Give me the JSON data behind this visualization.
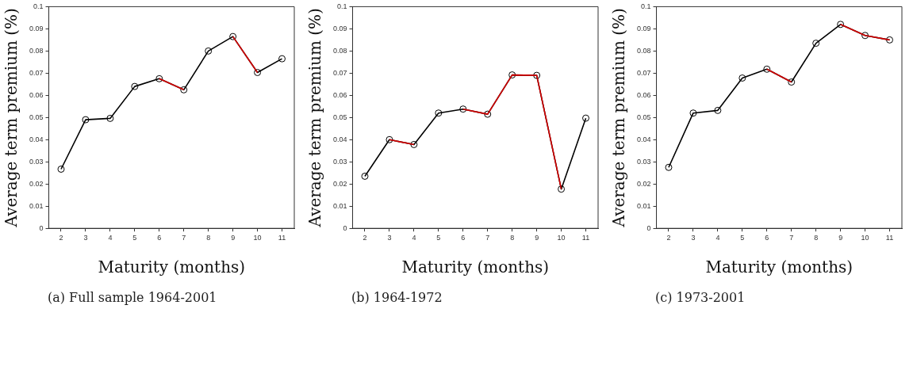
{
  "chart_data": [
    {
      "type": "line",
      "xlabel": "Maturity (months)",
      "ylabel": "Average term premium (%)",
      "annotations": [
        "(a) Full sample 1964-2001"
      ],
      "x": [
        2,
        3,
        4,
        5,
        6,
        7,
        8,
        9,
        10,
        11
      ],
      "xlim": [
        1.5,
        11.5
      ],
      "xticks": [
        2,
        3,
        4,
        5,
        6,
        7,
        8,
        9,
        10,
        11
      ],
      "ylim": [
        0,
        0.1
      ],
      "yticks": [
        0,
        0.01,
        0.02,
        0.03,
        0.04,
        0.05,
        0.06,
        0.07,
        0.08,
        0.09,
        0.1
      ],
      "grid": false,
      "legend": false,
      "marker": "circle",
      "series": [
        {
          "color": "#000000",
          "values": [
            0.0267,
            0.049,
            0.0496,
            0.064,
            0.0675,
            0.0625,
            0.08,
            0.0865,
            0.0703,
            0.0765
          ]
        },
        {
          "color": "#d40000",
          "marker": "none",
          "values": [
            null,
            null,
            null,
            null,
            0.0675,
            0.0625,
            null,
            0.0865,
            0.0703,
            null
          ]
        }
      ]
    },
    {
      "type": "line",
      "xlabel": "Maturity (months)",
      "ylabel": "Average term premium (%)",
      "annotations": [
        "(b) 1964-1972"
      ],
      "x": [
        2,
        3,
        4,
        5,
        6,
        7,
        8,
        9,
        10,
        11
      ],
      "xlim": [
        1.5,
        11.5
      ],
      "xticks": [
        2,
        3,
        4,
        5,
        6,
        7,
        8,
        9,
        10,
        11
      ],
      "ylim": [
        0,
        0.1
      ],
      "yticks": [
        0,
        0.01,
        0.02,
        0.03,
        0.04,
        0.05,
        0.06,
        0.07,
        0.08,
        0.09,
        0.1
      ],
      "grid": false,
      "legend": false,
      "marker": "circle",
      "series": [
        {
          "color": "#000000",
          "values": [
            0.0235,
            0.04,
            0.0378,
            0.052,
            0.0538,
            0.0515,
            0.0692,
            0.069,
            0.0177,
            0.0497
          ]
        },
        {
          "color": "#d40000",
          "marker": "none",
          "values": [
            null,
            0.04,
            0.0378,
            null,
            0.0538,
            0.0515,
            0.0692,
            0.069,
            0.0177,
            null
          ]
        }
      ]
    },
    {
      "type": "line",
      "xlabel": "Maturity (months)",
      "ylabel": "Average term premium (%)",
      "annotations": [
        "(c) 1973-2001"
      ],
      "x": [
        2,
        3,
        4,
        5,
        6,
        7,
        8,
        9,
        10,
        11
      ],
      "xlim": [
        1.5,
        11.5
      ],
      "xticks": [
        2,
        3,
        4,
        5,
        6,
        7,
        8,
        9,
        10,
        11
      ],
      "ylim": [
        0,
        0.1
      ],
      "yticks": [
        0,
        0.01,
        0.02,
        0.03,
        0.04,
        0.05,
        0.06,
        0.07,
        0.08,
        0.09,
        0.1
      ],
      "grid": false,
      "legend": false,
      "marker": "circle",
      "series": [
        {
          "color": "#000000",
          "values": [
            0.0275,
            0.052,
            0.0532,
            0.0678,
            0.0718,
            0.066,
            0.0835,
            0.092,
            0.087,
            0.085
          ]
        },
        {
          "color": "#d40000",
          "marker": "none",
          "values": [
            null,
            null,
            null,
            null,
            0.0718,
            0.066,
            null,
            0.092,
            0.087,
            0.085
          ]
        }
      ]
    }
  ]
}
